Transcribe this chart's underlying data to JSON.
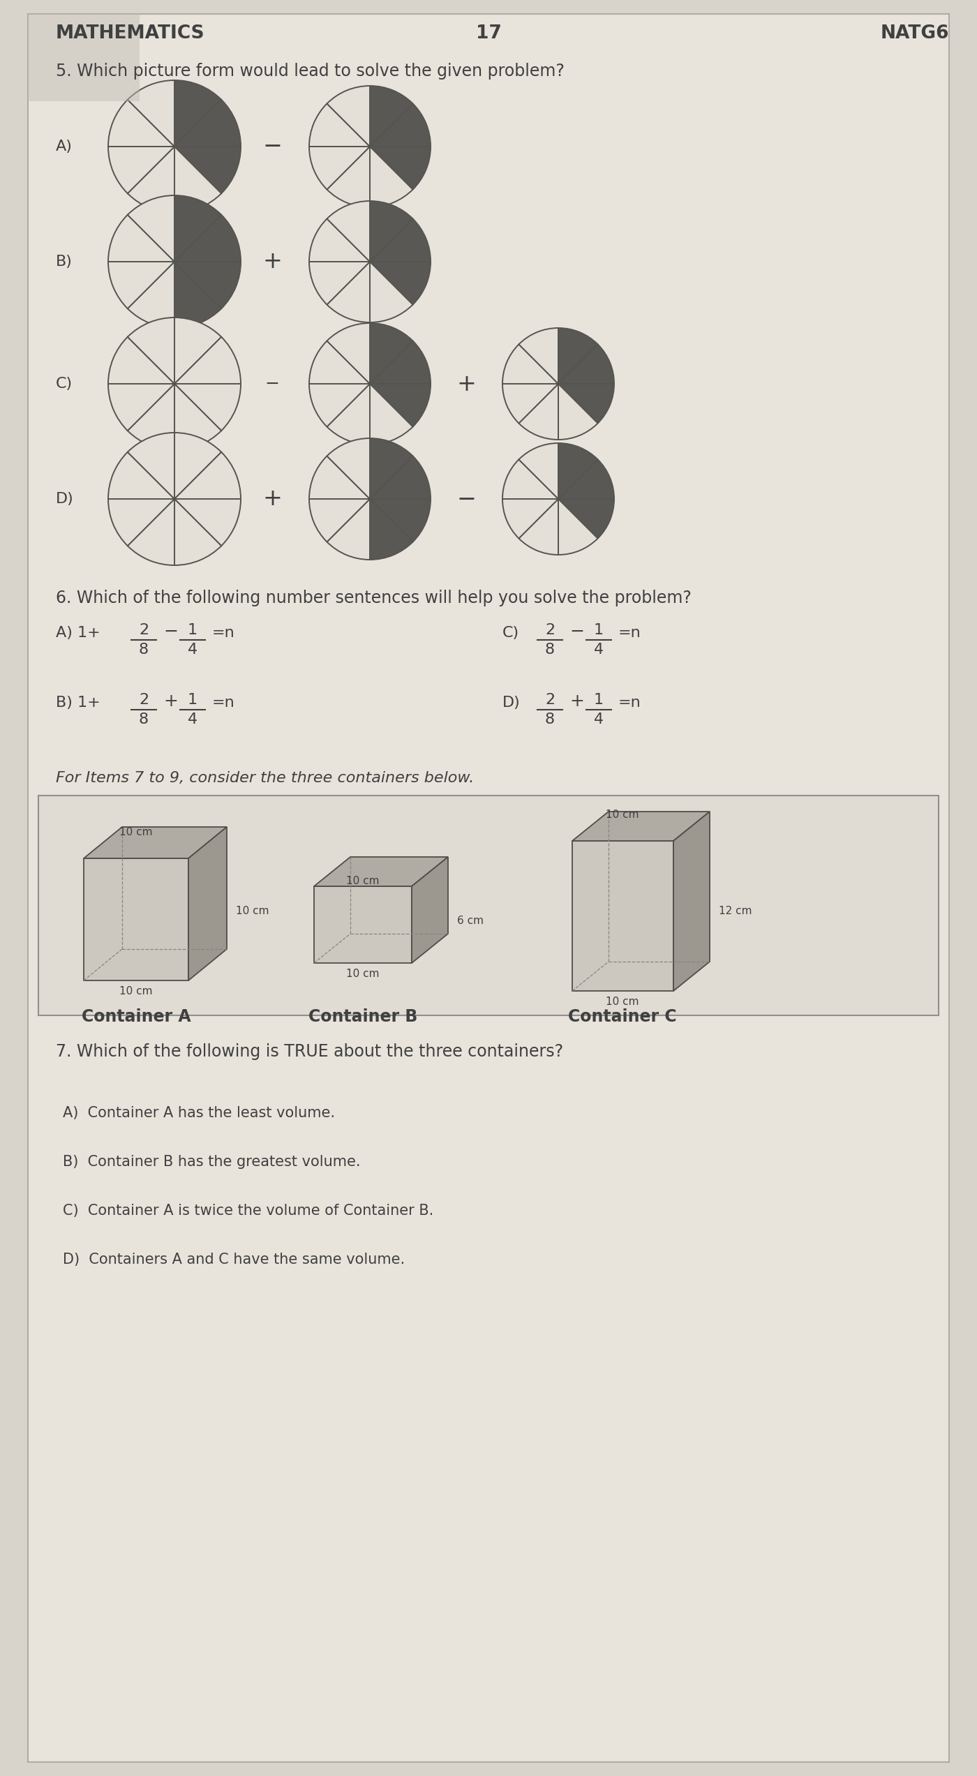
{
  "bg_color": "#d8d4cc",
  "paper_color": "#e8e4dc",
  "text_color": "#404040",
  "header_left": "MATHEMATICS",
  "header_center": "17",
  "header_right": "NATG6",
  "q5_text": "5. Which picture form would lead to solve the given problem?",
  "q6_text": "6. Which of the following number sentences will help you solve the problem?",
  "q7_header": "For Items 7 to 9, consider the three containers below.",
  "q7_text": "7. Which of the following is TRUE about the three containers?",
  "q7_A": "A)  Container A has the least volume.",
  "q7_B": "B)  Container B has the greatest volume.",
  "q7_C": "C)  Container A is twice the volume of Container B.",
  "q7_D": "D)  Containers A and C have the same volume.",
  "container_A_label": "Container A",
  "container_B_label": "Container B",
  "container_C_label": "Container C",
  "dark_gray": "#5a5a5a",
  "mid_gray": "#909090",
  "light_paper": "#dedad2"
}
